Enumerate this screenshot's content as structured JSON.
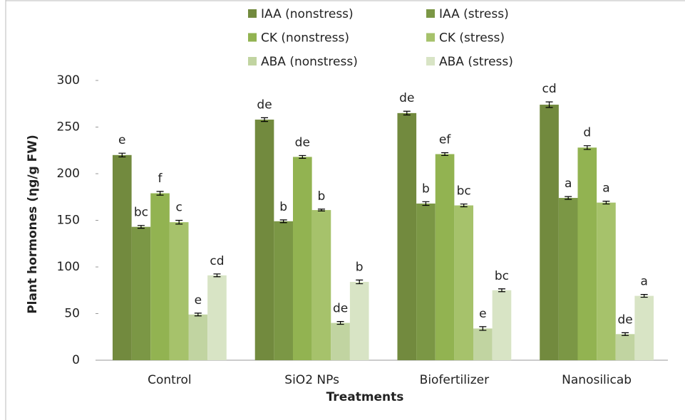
{
  "chart_data": {
    "type": "bar",
    "xlabel": "Treatments",
    "ylabel": "Plant  hormones (ηg/g FW)",
    "categories": [
      "Control",
      "SiO2 NPs",
      "Biofertilizer",
      "Nanosilicab"
    ],
    "series": [
      {
        "name": "IAA (nonstress)",
        "color": "#728a3e",
        "values": [
          220,
          258,
          265,
          274
        ],
        "errors": [
          2,
          2,
          2,
          3
        ],
        "annotations": [
          "e",
          "de",
          "de",
          "cd"
        ]
      },
      {
        "name": "IAA (stress)",
        "color": "#7b9745",
        "values": [
          143,
          149,
          168,
          174
        ],
        "errors": [
          1.5,
          1.5,
          2,
          1.5
        ],
        "annotations": [
          "bc",
          "b",
          "b",
          "a"
        ]
      },
      {
        "name": "CK (nonstress)",
        "color": "#92b351",
        "values": [
          179,
          218,
          221,
          228
        ],
        "errors": [
          2,
          1.5,
          1.5,
          2
        ],
        "annotations": [
          "f",
          "de",
          "ef",
          "d"
        ]
      },
      {
        "name": "CK (stress)",
        "color": "#a6c26b",
        "values": [
          148,
          161,
          166,
          169
        ],
        "errors": [
          2,
          1,
          1.5,
          1.5
        ],
        "annotations": [
          "c",
          "b",
          "bc",
          "a"
        ]
      },
      {
        "name": "ABA (nonstress)",
        "color": "#c1d4a1",
        "values": [
          49,
          40,
          34,
          28
        ],
        "errors": [
          1.5,
          1.5,
          2,
          1.5
        ],
        "annotations": [
          "e",
          "de",
          "e",
          "de"
        ]
      },
      {
        "name": "ABA (stress)",
        "color": "#d8e4c5",
        "values": [
          91,
          84,
          75,
          69
        ],
        "errors": [
          1.5,
          2,
          1.5,
          1.5
        ],
        "annotations": [
          "cd",
          "b",
          "bc",
          "a"
        ]
      }
    ],
    "ylim": [
      0,
      300
    ],
    "yticks": [
      0,
      50,
      100,
      150,
      200,
      250,
      300
    ]
  }
}
